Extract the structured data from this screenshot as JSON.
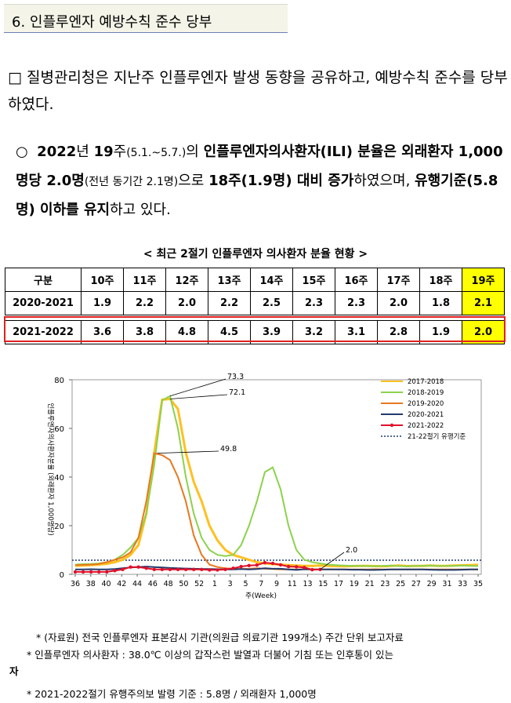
{
  "section_title": "6. 인플루엔자 예방수칙 준수 당부",
  "para1": {
    "bullet": "□",
    "text_a": " 질병관리청은 ",
    "text_b": "지난주 인플루엔자 발생 동향을 공유하고, 예방수칙 준수를 당부",
    "text_c": "하였다."
  },
  "para2": {
    "bullet": "○",
    "year": "2022",
    "t1": "년 ",
    "week": "19",
    "t2": "주",
    "range": "(5.1.~5.7.)",
    "t3": "의 ",
    "t4": "인플루엔자의사환자(ILI) 분율은 외래환자 1,000명당 2.0명",
    "t5": "(전년 동기간 2.1명)",
    "t6": "으로 ",
    "t7": "18주(1.9명) 대비 증가",
    "t8": "하였으며, ",
    "t9": "유행기준(5.8명) 이하를 유지",
    "t10": "하고 있다."
  },
  "table_caption": "< 최근 2절기 인플루엔자 의사환자 분율 현황 >",
  "table": {
    "headers": [
      "구분",
      "10주",
      "11주",
      "12주",
      "13주",
      "14주",
      "15주",
      "16주",
      "17주",
      "18주",
      "19주"
    ],
    "rows": [
      [
        "2020-2021",
        "1.9",
        "2.2",
        "2.0",
        "2.2",
        "2.5",
        "2.3",
        "2.3",
        "2.0",
        "1.8",
        "2.1"
      ],
      [
        "2021-2022",
        "3.6",
        "3.8",
        "4.8",
        "4.5",
        "3.9",
        "3.2",
        "3.1",
        "2.8",
        "1.9",
        "2.0"
      ]
    ]
  },
  "chart_data": {
    "type": "line",
    "ylabel": "인플루엔자의사환자분율 (외래환자 1,000명당)",
    "xlabel": "주(Week)",
    "ylim": [
      0,
      80
    ],
    "yticks": [
      "0",
      "20",
      "40",
      "60",
      "80"
    ],
    "x_ticks": [
      "36",
      "38",
      "40",
      "42",
      "44",
      "46",
      "48",
      "50",
      "52",
      "1",
      "3",
      "5",
      "7",
      "9",
      "11",
      "13",
      "15",
      "17",
      "19",
      "21",
      "23",
      "25",
      "27",
      "29",
      "31",
      "33",
      "35"
    ],
    "annotations": [
      "73.3",
      "72.1",
      "49.8",
      "2.0"
    ],
    "threshold": {
      "name": "21-22절기 유행기준",
      "value": 5.8,
      "color": "#1f3a6e"
    },
    "series": [
      {
        "name": "2017-2018",
        "color": "#ffc020",
        "values": [
          3.5,
          3.6,
          3.8,
          4,
          4.3,
          5,
          6,
          8,
          12,
          25,
          50,
          71.8,
          72.1,
          68,
          50,
          38,
          30,
          20,
          14,
          10,
          8,
          7,
          6,
          5,
          4.5,
          4.2,
          4,
          3.8,
          3.6,
          3.5,
          3.5,
          3.6,
          3.5,
          3.4,
          3.3,
          3.4,
          3.5,
          3.5,
          3.4,
          3.3,
          3.5,
          3.6,
          3.4,
          3.5,
          3.5,
          3.6,
          3.5,
          3.5,
          3.6,
          3.7,
          3.8,
          3.9
        ]
      },
      {
        "name": "2018-2019",
        "color": "#8cd24c",
        "values": [
          4,
          4.2,
          4.3,
          4.5,
          5,
          6,
          8,
          11,
          15,
          25,
          45,
          71.5,
          73.3,
          60,
          40,
          25,
          15,
          10,
          8,
          7.5,
          8,
          12,
          20,
          30,
          42,
          44,
          35,
          20,
          10,
          6,
          5,
          4.5,
          4,
          3.8,
          3.6,
          3.5,
          3.5,
          3.4,
          3.3,
          3.5,
          3.6,
          3.4,
          3.3,
          3.5,
          3.5,
          3.6,
          3.4,
          3.5,
          3.5,
          3.6,
          3.5,
          3.4
        ]
      },
      {
        "name": "2019-2020",
        "color": "#e87820",
        "values": [
          3.8,
          3.9,
          4,
          4.3,
          5,
          6,
          7,
          9,
          15,
          30,
          49.8,
          49,
          47,
          40,
          30,
          16,
          8,
          4,
          3,
          2.5,
          2.3,
          2.2,
          2.3,
          2.5,
          2.3,
          2.2,
          2,
          2,
          2,
          2.1,
          2,
          2,
          2.1,
          2,
          2,
          2,
          2,
          2,
          2.1,
          2,
          2,
          2,
          2,
          2,
          2,
          2,
          2,
          2,
          2,
          2,
          2,
          2
        ]
      },
      {
        "name": "2020-2021",
        "color": "#1f3a6e",
        "values": [
          2,
          2,
          2.1,
          2,
          2,
          2.2,
          2.5,
          2.8,
          3,
          3.2,
          3,
          2.8,
          2.6,
          2.5,
          2.4,
          2.3,
          2.2,
          2.2,
          2.1,
          2,
          2,
          2.2,
          2,
          2.2,
          2.5,
          2.3,
          2.3,
          2,
          1.8,
          2.1,
          2,
          2,
          2,
          2,
          2,
          1.9,
          1.9,
          1.8,
          1.8,
          1.9,
          2,
          2,
          2,
          2,
          2,
          1.9,
          1.8,
          1.8,
          1.8,
          1.9,
          2,
          2
        ]
      },
      {
        "name": "2021-2022",
        "color": "#e0102a",
        "values": [
          1,
          1,
          1,
          1,
          1,
          1.5,
          2,
          3,
          3,
          2.5,
          2,
          2,
          2,
          2,
          2,
          2,
          2,
          1.8,
          1.8,
          2,
          2.5,
          3.2,
          3.6,
          3.8,
          4.8,
          4.5,
          3.9,
          3.2,
          3.1,
          2.8,
          1.9,
          2.0
        ]
      }
    ]
  },
  "notes": {
    "n1": "* (자료원) 전국 인플루엔자 표본감시 기관(의원급 의료기관 199개소) 주간 단위 보고자료",
    "n2": "* 인플루엔자 의사환자 : 38.0℃ 이상의 갑작스런 발열과 더불어 기침 또는 인후통이 있는",
    "n2b": "자",
    "n3": "* 2021-2022절기 유행주의보 발령 기준 : 5.8명 / 외래환자 1,000명"
  }
}
